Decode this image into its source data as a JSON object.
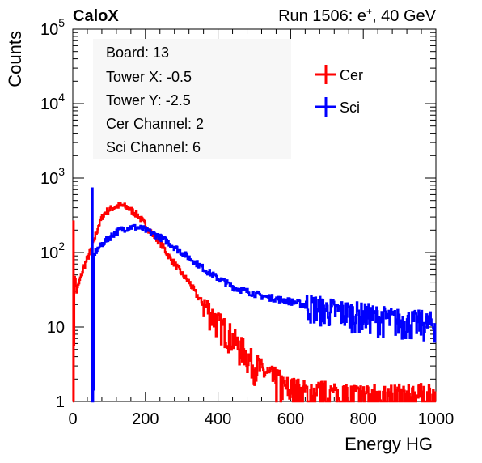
{
  "chart_data": {
    "type": "line",
    "style": "step-histogram",
    "title_left": "CaloX",
    "title_right_prefix": "Run 1506: e",
    "title_right_sup": "+",
    "title_right_suffix": ", 40 GeV",
    "xlabel": "Energy HG",
    "ylabel": "Counts",
    "xlim": [
      0,
      1000
    ],
    "ylim": [
      1,
      100000
    ],
    "yscale": "log",
    "xticks": [
      0,
      200,
      400,
      600,
      800,
      1000
    ],
    "xtick_labels": [
      "0",
      "200",
      "400",
      "600",
      "800",
      "1000"
    ],
    "yticks": [
      1,
      10,
      100,
      1000,
      10000,
      100000
    ],
    "ytick_labels": [
      {
        "base": "1",
        "exp": ""
      },
      {
        "base": "10",
        "exp": ""
      },
      {
        "base": "10",
        "exp": "2"
      },
      {
        "base": "10",
        "exp": "3"
      },
      {
        "base": "10",
        "exp": "4"
      },
      {
        "base": "10",
        "exp": "5"
      }
    ],
    "info_box": [
      "Board: 13",
      "Tower X: -0.5",
      "Tower Y: -2.5",
      "Cer Channel: 2",
      "Sci Channel: 6"
    ],
    "legend_position": "top-right",
    "series": [
      {
        "name": "Cer",
        "color": "#ff0000",
        "spike": {
          "x": 2,
          "y": 270
        },
        "points": [
          [
            0,
            1
          ],
          [
            4,
            50
          ],
          [
            10,
            30
          ],
          [
            20,
            45
          ],
          [
            30,
            65
          ],
          [
            40,
            85
          ],
          [
            50,
            110
          ],
          [
            60,
            160
          ],
          [
            70,
            230
          ],
          [
            80,
            300
          ],
          [
            90,
            350
          ],
          [
            100,
            380
          ],
          [
            110,
            400
          ],
          [
            120,
            420
          ],
          [
            130,
            430
          ],
          [
            140,
            420
          ],
          [
            150,
            400
          ],
          [
            160,
            370
          ],
          [
            170,
            340
          ],
          [
            180,
            310
          ],
          [
            190,
            270
          ],
          [
            200,
            230
          ],
          [
            210,
            200
          ],
          [
            220,
            175
          ],
          [
            230,
            155
          ],
          [
            240,
            135
          ],
          [
            250,
            115
          ],
          [
            260,
            95
          ],
          [
            270,
            80
          ],
          [
            280,
            70
          ],
          [
            290,
            60
          ],
          [
            300,
            52
          ],
          [
            310,
            45
          ],
          [
            320,
            40
          ],
          [
            330,
            33
          ],
          [
            340,
            27
          ],
          [
            350,
            23
          ],
          [
            360,
            20
          ],
          [
            370,
            18
          ],
          [
            380,
            15
          ],
          [
            390,
            13
          ],
          [
            400,
            11
          ],
          [
            410,
            10
          ],
          [
            420,
            9
          ],
          [
            430,
            8
          ],
          [
            440,
            7
          ],
          [
            450,
            6
          ],
          [
            460,
            5
          ],
          [
            470,
            5
          ],
          [
            480,
            4
          ],
          [
            490,
            3.5
          ],
          [
            500,
            3
          ],
          [
            510,
            3
          ],
          [
            520,
            2.5
          ],
          [
            530,
            2.5
          ],
          [
            540,
            2.2
          ],
          [
            550,
            2
          ],
          [
            560,
            2
          ],
          [
            570,
            1.8
          ],
          [
            580,
            1.6
          ],
          [
            600,
            1.5
          ],
          [
            620,
            1.4
          ],
          [
            640,
            1.3
          ],
          [
            660,
            1.3
          ],
          [
            680,
            1.3
          ],
          [
            700,
            1.3
          ],
          [
            720,
            1.2
          ],
          [
            740,
            1.2
          ],
          [
            760,
            1.2
          ],
          [
            780,
            1.2
          ],
          [
            800,
            1.2
          ],
          [
            850,
            1.2
          ],
          [
            900,
            1.2
          ],
          [
            950,
            1.2
          ],
          [
            1000,
            1.2
          ]
        ]
      },
      {
        "name": "Sci",
        "color": "#0000ff",
        "spike": {
          "x": 54,
          "y": 750
        },
        "points": [
          [
            50,
            1
          ],
          [
            56,
            1
          ],
          [
            57,
            90
          ],
          [
            60,
            100
          ],
          [
            70,
            115
          ],
          [
            80,
            130
          ],
          [
            90,
            145
          ],
          [
            100,
            160
          ],
          [
            110,
            175
          ],
          [
            120,
            190
          ],
          [
            130,
            200
          ],
          [
            140,
            210
          ],
          [
            150,
            215
          ],
          [
            160,
            220
          ],
          [
            170,
            218
          ],
          [
            180,
            215
          ],
          [
            190,
            210
          ],
          [
            200,
            200
          ],
          [
            210,
            190
          ],
          [
            220,
            180
          ],
          [
            230,
            170
          ],
          [
            240,
            160
          ],
          [
            250,
            150
          ],
          [
            260,
            140
          ],
          [
            270,
            128
          ],
          [
            280,
            118
          ],
          [
            290,
            108
          ],
          [
            300,
            100
          ],
          [
            310,
            92
          ],
          [
            320,
            85
          ],
          [
            330,
            78
          ],
          [
            340,
            72
          ],
          [
            350,
            66
          ],
          [
            360,
            61
          ],
          [
            370,
            56
          ],
          [
            380,
            52
          ],
          [
            390,
            48
          ],
          [
            400,
            45
          ],
          [
            410,
            42
          ],
          [
            420,
            40
          ],
          [
            430,
            37
          ],
          [
            440,
            35
          ],
          [
            450,
            33
          ],
          [
            460,
            32
          ],
          [
            470,
            31
          ],
          [
            480,
            30
          ],
          [
            490,
            29
          ],
          [
            500,
            28
          ],
          [
            520,
            26
          ],
          [
            540,
            25
          ],
          [
            560,
            24
          ],
          [
            580,
            23
          ],
          [
            600,
            22
          ],
          [
            620,
            21
          ],
          [
            640,
            20
          ],
          [
            660,
            19
          ],
          [
            680,
            18
          ],
          [
            700,
            17
          ],
          [
            720,
            16.5
          ],
          [
            740,
            16
          ],
          [
            760,
            15.5
          ],
          [
            780,
            15
          ],
          [
            800,
            14.5
          ],
          [
            820,
            14
          ],
          [
            840,
            13.5
          ],
          [
            860,
            13
          ],
          [
            880,
            12.5
          ],
          [
            900,
            12
          ],
          [
            920,
            12
          ],
          [
            940,
            11.5
          ],
          [
            960,
            11.5
          ],
          [
            980,
            11
          ],
          [
            1000,
            11
          ]
        ]
      }
    ]
  }
}
